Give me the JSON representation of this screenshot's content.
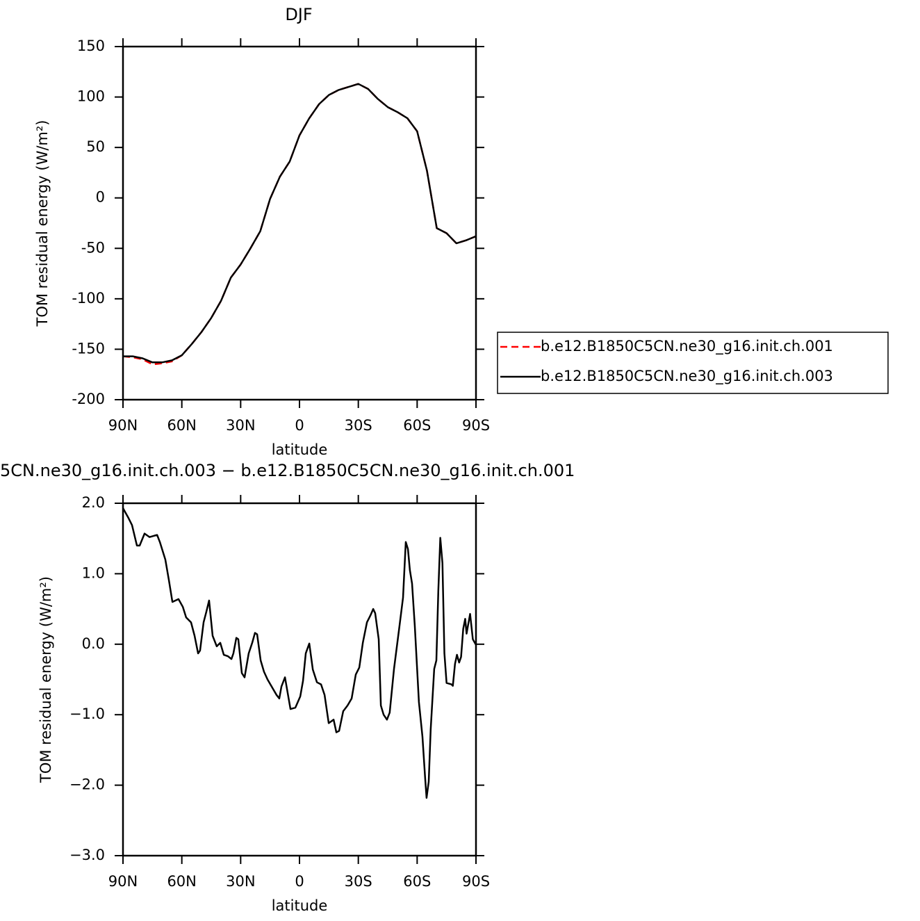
{
  "chart_data": [
    {
      "type": "line",
      "title": "DJF",
      "xlabel": "latitude",
      "ylabel": "TOM residual energy (W/m²)",
      "xlim": [
        90,
        -90
      ],
      "xticks": [
        {
          "value": 90,
          "label": "90N"
        },
        {
          "value": 60,
          "label": "60N"
        },
        {
          "value": 30,
          "label": "30N"
        },
        0,
        {
          "value": -30,
          "label": "30S"
        },
        {
          "value": -60,
          "label": "60S"
        },
        {
          "value": -90,
          "label": "90S"
        }
      ],
      "ylim": [
        -200,
        150
      ],
      "yticks": [
        -200,
        -150,
        -100,
        -50,
        0,
        50,
        100,
        150
      ],
      "legend": "right",
      "x": [
        90,
        85,
        80,
        75,
        70,
        65,
        60,
        55,
        50,
        45,
        40,
        35,
        30,
        25,
        20,
        15,
        10,
        5,
        0,
        -5,
        -10,
        -15,
        -20,
        -25,
        -30,
        -35,
        -40,
        -45,
        -50,
        -55,
        -60,
        -65,
        -70,
        -75,
        -80,
        -85,
        -90
      ],
      "series": [
        {
          "name": "b.e12.B1850C5CN.ne30_g16.init.ch.001",
          "color": "#ff0000",
          "dashed": true,
          "values": [
            -157,
            -158,
            -160,
            -165,
            -164,
            -162,
            -156,
            -145,
            -133,
            -119,
            -102,
            -79,
            -66,
            -50,
            -33,
            -1,
            21,
            36,
            62,
            79,
            93,
            102,
            107,
            110,
            113,
            108,
            98,
            90,
            85,
            79,
            66,
            27,
            -30,
            -35,
            -45,
            -42,
            -38
          ]
        },
        {
          "name": "b.e12.B1850C5CN.ne30_g16.init.ch.003",
          "color": "#000000",
          "dashed": false,
          "values": [
            -157,
            -157,
            -159,
            -163,
            -163,
            -161,
            -156,
            -145,
            -133,
            -119,
            -102,
            -79,
            -66,
            -50,
            -33,
            -1,
            21,
            36,
            62,
            79,
            93,
            102,
            107,
            110,
            113,
            108,
            98,
            90,
            85,
            79,
            66,
            27,
            -30,
            -35,
            -45,
            -42,
            -38
          ]
        }
      ]
    },
    {
      "type": "line",
      "title": "5CN.ne30_g16.init.ch.003 − b.e12.B1850C5CN.ne30_g16.init.ch.001",
      "xlabel": "latitude",
      "ylabel": "TOM residual energy (W/m²)",
      "xlim": [
        90,
        -90
      ],
      "xticks": [
        {
          "value": 90,
          "label": "90N"
        },
        {
          "value": 60,
          "label": "60N"
        },
        {
          "value": 30,
          "label": "30N"
        },
        0,
        {
          "value": -30,
          "label": "30S"
        },
        {
          "value": -60,
          "label": "60S"
        },
        {
          "value": -90,
          "label": "90S"
        }
      ],
      "ylim": [
        -3,
        2
      ],
      "yticks": [
        {
          "value": -3,
          "label": "−3.0"
        },
        {
          "value": -2,
          "label": "−2.0"
        },
        {
          "value": -1,
          "label": "−1.0"
        },
        {
          "value": 0,
          "label": "0.0"
        },
        {
          "value": 1,
          "label": "1.0"
        },
        {
          "value": 2,
          "label": "2.0"
        }
      ],
      "color": "#000000",
      "x": [
        90,
        87.2,
        85.4,
        82.9,
        81.5,
        79,
        76.5,
        74,
        72.6,
        71.2,
        68.4,
        66.6,
        64.8,
        61.7,
        59.5,
        57.8,
        55.3,
        53.5,
        51.7,
        50.7,
        48.9,
        47.5,
        46.1,
        44.3,
        42.2,
        40.4,
        38.6,
        36.5,
        34.7,
        33.7,
        32.2,
        31.2,
        29.4,
        28,
        25.9,
        24.1,
        22.7,
        21.6,
        19.8,
        18.1,
        16.3,
        13.8,
        11.7,
        10.3,
        9.2,
        7.4,
        4.6,
        2.1,
        -0.4,
        -1.8,
        -3.2,
        -5,
        -6.8,
        -8.9,
        -11,
        -12.8,
        -14.9,
        -17.4,
        -18.8,
        -20.2,
        -22.3,
        -24.5,
        -26.6,
        -28.7,
        -30.5,
        -32.3,
        -34.4,
        -36.2,
        -37.6,
        -38.6,
        -40.4,
        -41.5,
        -42.9,
        -44.6,
        -46,
        -48.2,
        -51,
        -52.8,
        -54.2,
        -55.3,
        -56.3,
        -57.4,
        -58.8,
        -60.9,
        -62.7,
        -64.1,
        -64.8,
        -65.9,
        -66.9,
        -68.7,
        -69.8,
        -70.8,
        -71.8,
        -72.9,
        -73.9,
        -75,
        -77.5,
        -78.2,
        -79.3,
        -80.3,
        -81.4,
        -82.4,
        -83.5,
        -84.5,
        -85.2,
        -87,
        -88.4,
        -90
      ],
      "values": [
        1.93,
        1.79,
        1.69,
        1.4,
        1.4,
        1.57,
        1.52,
        1.54,
        1.55,
        1.45,
        1.2,
        0.91,
        0.6,
        0.64,
        0.53,
        0.38,
        0.31,
        0.12,
        -0.13,
        -0.09,
        0.31,
        0.46,
        0.62,
        0.12,
        -0.03,
        0.02,
        -0.15,
        -0.17,
        -0.21,
        -0.13,
        0.09,
        0.07,
        -0.41,
        -0.47,
        -0.13,
        0.02,
        0.16,
        0.14,
        -0.23,
        -0.39,
        -0.5,
        -0.62,
        -0.72,
        -0.77,
        -0.6,
        -0.47,
        -0.92,
        -0.9,
        -0.74,
        -0.52,
        -0.13,
        0.01,
        -0.36,
        -0.54,
        -0.57,
        -0.72,
        -1.12,
        -1.07,
        -1.25,
        -1.23,
        -0.95,
        -0.87,
        -0.77,
        -0.43,
        -0.33,
        0.02,
        0.31,
        0.41,
        0.5,
        0.44,
        0.07,
        -0.87,
        -1,
        -1.07,
        -0.97,
        -0.35,
        0.26,
        0.66,
        1.45,
        1.35,
        1.05,
        0.86,
        0.26,
        -0.82,
        -1.31,
        -1.91,
        -2.18,
        -1.95,
        -1.21,
        -0.35,
        -0.23,
        0.76,
        1.51,
        1.15,
        -0.13,
        -0.55,
        -0.57,
        -0.59,
        -0.28,
        -0.15,
        -0.26,
        -0.18,
        0.22,
        0.36,
        0.15,
        0.43,
        0.07,
        -0.01
      ]
    }
  ]
}
